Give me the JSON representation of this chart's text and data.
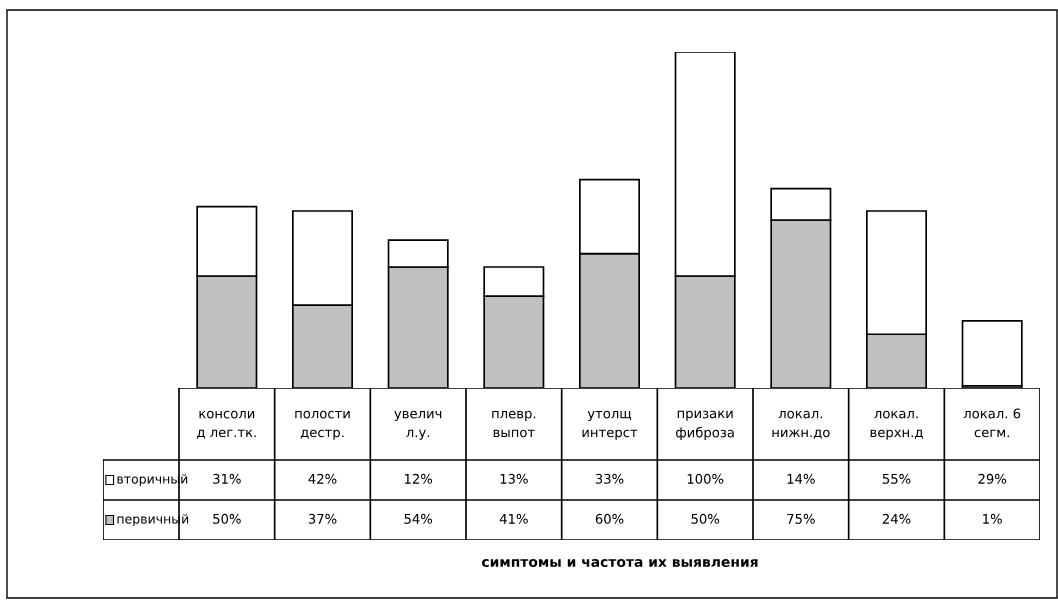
{
  "chart_data": {
    "type": "bar",
    "stacked": true,
    "legend": "bottom left",
    "annotations": [
      "симптомы и частота их выявления"
    ],
    "categories": [
      "консоли\nд лег.тк.",
      "полости\nдестр.",
      "увелич\nл.у.",
      "плевр.\nвыпот",
      "утолщ\nинтерст",
      "призаки\nфиброза",
      "локал.\nнижн.до",
      "локал.\nверхн.д",
      "локал. 6\nсегм."
    ],
    "series": [
      {
        "name": "первичный",
        "color": "#c0c0c0",
        "values": [
          50,
          37,
          54,
          41,
          60,
          50,
          75,
          24,
          1
        ],
        "value_labels": [
          "50%",
          "37%",
          "54%",
          "41%",
          "60%",
          "50%",
          "75%",
          "24%",
          "1%"
        ]
      },
      {
        "name": "вторичный",
        "color": "#ffffff",
        "values": [
          31,
          42,
          12,
          13,
          33,
          100,
          14,
          55,
          29
        ],
        "value_labels": [
          "31%",
          "42%",
          "12%",
          "13%",
          "33%",
          "100%",
          "14%",
          "55%",
          "29%"
        ]
      }
    ]
  }
}
